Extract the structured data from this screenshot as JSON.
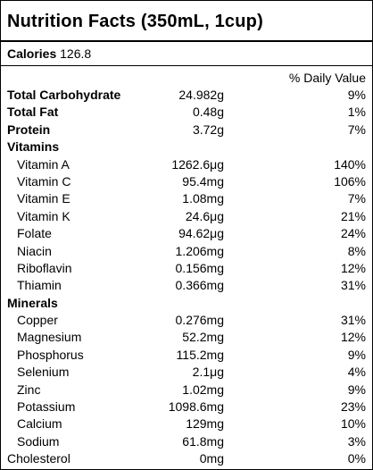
{
  "title": "Nutrition Facts (350mL, 1cup)",
  "calories": {
    "label": "Calories",
    "value": "126.8"
  },
  "dv_header": "% Daily Value",
  "rows": [
    {
      "name": "Total Carbohydrate",
      "amount": "24.982g",
      "dv": "9%",
      "style": "bold"
    },
    {
      "name": "Total Fat",
      "amount": "0.48g",
      "dv": "1%",
      "style": "bold"
    },
    {
      "name": "Protein",
      "amount": "3.72g",
      "dv": "7%",
      "style": "bold"
    },
    {
      "name": "Vitamins",
      "amount": "",
      "dv": "",
      "style": "section"
    },
    {
      "name": "Vitamin A",
      "amount": "1262.6μg",
      "dv": "140%",
      "style": "indent"
    },
    {
      "name": "Vitamin C",
      "amount": "95.4mg",
      "dv": "106%",
      "style": "indent"
    },
    {
      "name": "Vitamin E",
      "amount": "1.08mg",
      "dv": "7%",
      "style": "indent"
    },
    {
      "name": "Vitamin K",
      "amount": "24.6μg",
      "dv": "21%",
      "style": "indent"
    },
    {
      "name": "Folate",
      "amount": "94.62μg",
      "dv": "24%",
      "style": "indent"
    },
    {
      "name": "Niacin",
      "amount": "1.206mg",
      "dv": "8%",
      "style": "indent"
    },
    {
      "name": "Riboflavin",
      "amount": "0.156mg",
      "dv": "12%",
      "style": "indent"
    },
    {
      "name": "Thiamin",
      "amount": "0.366mg",
      "dv": "31%",
      "style": "indent"
    },
    {
      "name": "Minerals",
      "amount": "",
      "dv": "",
      "style": "section"
    },
    {
      "name": "Copper",
      "amount": "0.276mg",
      "dv": "31%",
      "style": "indent"
    },
    {
      "name": "Magnesium",
      "amount": "52.2mg",
      "dv": "12%",
      "style": "indent"
    },
    {
      "name": "Phosphorus",
      "amount": "115.2mg",
      "dv": "9%",
      "style": "indent"
    },
    {
      "name": "Selenium",
      "amount": "2.1μg",
      "dv": "4%",
      "style": "indent"
    },
    {
      "name": "Zinc",
      "amount": "1.02mg",
      "dv": "9%",
      "style": "indent"
    },
    {
      "name": "Potassium",
      "amount": "1098.6mg",
      "dv": "23%",
      "style": "indent"
    },
    {
      "name": "Calcium",
      "amount": "129mg",
      "dv": "10%",
      "style": "indent"
    },
    {
      "name": "Sodium",
      "amount": "61.8mg",
      "dv": "3%",
      "style": "indent"
    },
    {
      "name": "Cholesterol",
      "amount": "0mg",
      "dv": "0%",
      "style": "plain"
    }
  ]
}
